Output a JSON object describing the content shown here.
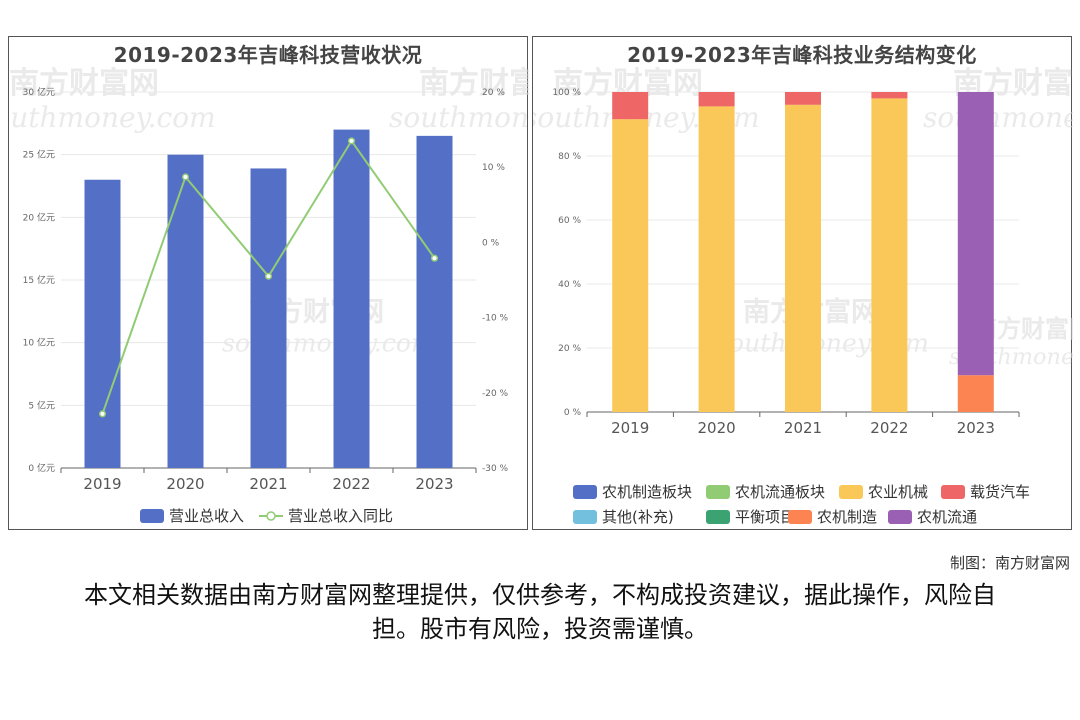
{
  "chart_data": [
    {
      "type": "bar",
      "title": "2019-2023年吉峰科技营收状况",
      "categories": [
        "2019",
        "2020",
        "2021",
        "2022",
        "2023"
      ],
      "y_left": {
        "ticks": [
          "0 亿元",
          "5 亿元",
          "10 亿元",
          "15 亿元",
          "20 亿元",
          "25 亿元",
          "30 亿元"
        ],
        "range": [
          0,
          30
        ]
      },
      "y_right": {
        "ticks": [
          "-30 %",
          "-20 %",
          "-10 %",
          "0 %",
          "10 %",
          "20 %"
        ],
        "range": [
          -30,
          20
        ]
      },
      "series": [
        {
          "name": "营业总收入",
          "type": "bar",
          "axis": "left",
          "color": "#5470c6",
          "values": [
            23.0,
            25.0,
            23.9,
            27.0,
            26.5
          ]
        },
        {
          "name": "营业总收入同比",
          "type": "line",
          "axis": "right",
          "color": "#91cc75",
          "values": [
            -22.8,
            8.7,
            -4.5,
            13.5,
            -2.1
          ]
        }
      ],
      "legend": "bottom",
      "grid": true
    },
    {
      "type": "bar",
      "stacked": true,
      "title": "2019-2023年吉峰科技业务结构变化",
      "categories": [
        "2019",
        "2020",
        "2021",
        "2022",
        "2023"
      ],
      "y": {
        "ticks": [
          "0 %",
          "20 %",
          "40 %",
          "60 %",
          "80 %",
          "100 %"
        ],
        "range": [
          0,
          100
        ]
      },
      "series": [
        {
          "name": "农机制造板块",
          "color": "#5470c6",
          "values": [
            0,
            0,
            0,
            0,
            0
          ]
        },
        {
          "name": "农机流通板块",
          "color": "#91cc75",
          "values": [
            0,
            0,
            0,
            0,
            0
          ]
        },
        {
          "name": "农业机械",
          "color": "#fac858",
          "values": [
            91.5,
            95.5,
            96,
            98,
            0
          ]
        },
        {
          "name": "载货汽车",
          "color": "#ee6666",
          "values": [
            8.5,
            4.5,
            4,
            2,
            0
          ]
        },
        {
          "name": "其他(补充)",
          "color": "#73c0de",
          "values": [
            0,
            0,
            0,
            0,
            0
          ]
        },
        {
          "name": "平衡项目",
          "color": "#3ba272",
          "values": [
            0,
            0,
            0,
            0,
            0
          ]
        },
        {
          "name": "农机制造",
          "color": "#fc8452",
          "values": [
            0,
            0,
            0,
            0,
            11.5
          ]
        },
        {
          "name": "农机流通",
          "color": "#9a60b4",
          "values": [
            0,
            0,
            0,
            0,
            88.5
          ]
        }
      ],
      "legend": "bottom",
      "grid": true
    }
  ],
  "watermark": {
    "cn": "南方财富网",
    "en": "southmoney.com"
  },
  "footer": {
    "credit": "制图：南方财富网",
    "disclaimer": "本文相关数据由南方财富网整理提供，仅供参考，不构成投资建议，据此操作，风险自担。股市有风险，投资需谨慎。"
  }
}
